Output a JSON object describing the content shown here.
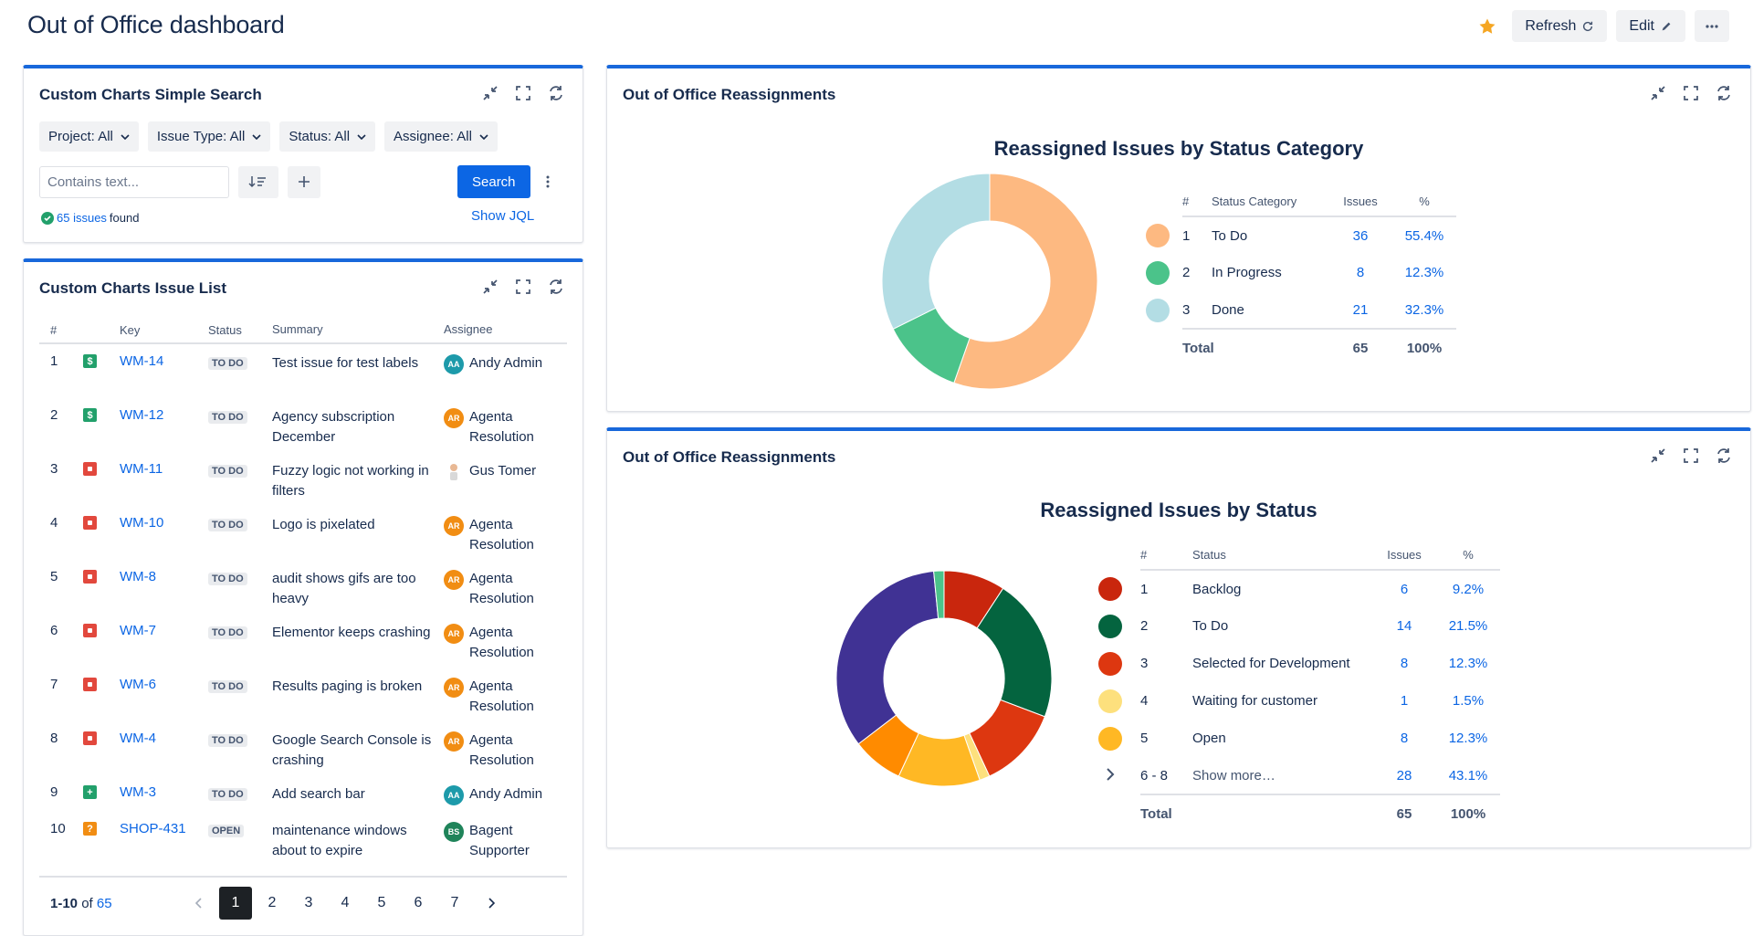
{
  "page": {
    "title": "Out of Office dashboard",
    "actions": {
      "refresh": "Refresh",
      "edit": "Edit"
    }
  },
  "search_panel": {
    "title": "Custom Charts Simple Search",
    "filters": [
      "Project: All",
      "Issue Type: All",
      "Status: All",
      "Assignee: All"
    ],
    "placeholder": "Contains text...",
    "search_label": "Search",
    "found_count": "65 issues",
    "found_suffix": "found",
    "show_jql": "Show JQL"
  },
  "issue_list": {
    "title": "Custom Charts Issue List",
    "headers": {
      "num": "#",
      "key": "Key",
      "status": "Status",
      "summary": "Summary",
      "assignee": "Assignee"
    },
    "rows": [
      {
        "num": "1",
        "type": "story",
        "key": "WM-14",
        "status": "TO DO",
        "summary": "Test issue for test labels",
        "assignee": "Andy Admin",
        "initials": "AA",
        "avatar_color": "#1d9aaa"
      },
      {
        "num": "2",
        "type": "story",
        "key": "WM-12",
        "status": "TO DO",
        "summary": "Agency subscription December",
        "assignee": "Agenta Resolution",
        "initials": "AR",
        "avatar_color": "#f18d13"
      },
      {
        "num": "3",
        "type": "bug",
        "key": "WM-11",
        "status": "TO DO",
        "summary": "Fuzzy logic not working in filters",
        "assignee": "Gus Tomer",
        "initials": "",
        "avatar_color": "#ffffff"
      },
      {
        "num": "4",
        "type": "bug",
        "key": "WM-10",
        "status": "TO DO",
        "summary": "Logo is pixelated",
        "assignee": "Agenta Resolution",
        "initials": "AR",
        "avatar_color": "#f18d13"
      },
      {
        "num": "5",
        "type": "bug",
        "key": "WM-8",
        "status": "TO DO",
        "summary": "audit shows gifs are too heavy",
        "assignee": "Agenta Resolution",
        "initials": "AR",
        "avatar_color": "#f18d13"
      },
      {
        "num": "6",
        "type": "bug",
        "key": "WM-7",
        "status": "TO DO",
        "summary": "Elementor keeps crashing",
        "assignee": "Agenta Resolution",
        "initials": "AR",
        "avatar_color": "#f18d13"
      },
      {
        "num": "7",
        "type": "bug",
        "key": "WM-6",
        "status": "TO DO",
        "summary": "Results paging is broken",
        "assignee": "Agenta Resolution",
        "initials": "AR",
        "avatar_color": "#f18d13"
      },
      {
        "num": "8",
        "type": "bug",
        "key": "WM-4",
        "status": "TO DO",
        "summary": "Google Search Console is crashing",
        "assignee": "Agenta Resolution",
        "initials": "AR",
        "avatar_color": "#f18d13"
      },
      {
        "num": "9",
        "type": "task",
        "key": "WM-3",
        "status": "TO DO",
        "summary": "Add search bar",
        "assignee": "Andy Admin",
        "initials": "AA",
        "avatar_color": "#1d9aaa"
      },
      {
        "num": "10",
        "type": "question",
        "key": "SHOP-431",
        "status": "OPEN",
        "summary": "maintenance windows about to expire",
        "assignee": "Bagent Supporter",
        "initials": "BS",
        "avatar_color": "#1f845a"
      }
    ],
    "pager": {
      "range": "1-10",
      "of": "of",
      "total": "65",
      "pages": [
        "1",
        "2",
        "3",
        "4",
        "5",
        "6",
        "7"
      ]
    }
  },
  "colors": {
    "story": "#22a06b",
    "bug": "#e2483d",
    "task": "#22a06b",
    "question": "#f18d13",
    "accent": "#1868db"
  },
  "chart_panel_1": {
    "title": "Out of Office Reassignments",
    "table_headers": {
      "num": "#",
      "name": "Status Category",
      "issues": "Issues",
      "pct": "%"
    },
    "total_label": "Total",
    "total_issues": "65",
    "total_pct": "100%"
  },
  "chart_panel_2": {
    "title": "Out of Office Reassignments",
    "table_headers": {
      "num": "#",
      "name": "Status",
      "issues": "Issues",
      "pct": "%"
    },
    "total_label": "Total",
    "total_issues": "65",
    "total_pct": "100%"
  },
  "chart_data": [
    {
      "type": "pie",
      "title": "Reassigned Issues by Status Category",
      "categories": [
        "To Do",
        "In Progress",
        "Done"
      ],
      "values": [
        36,
        8,
        21
      ],
      "percents": [
        "55.4%",
        "12.3%",
        "32.3%"
      ],
      "nums": [
        "1",
        "2",
        "3"
      ],
      "colors": [
        "#fdb981",
        "#4bc38a",
        "#b3dde4"
      ]
    },
    {
      "type": "pie",
      "title": "Reassigned Issues by Status",
      "categories": [
        "Backlog",
        "To Do",
        "Selected for Development",
        "Waiting for customer",
        "Open",
        "Show more…"
      ],
      "values": [
        6,
        14,
        8,
        1,
        8,
        28
      ],
      "percents": [
        "9.2%",
        "21.5%",
        "12.3%",
        "1.5%",
        "12.3%",
        "43.1%"
      ],
      "nums": [
        "1",
        "2",
        "3",
        "4",
        "5",
        "6 - 8"
      ],
      "colors": [
        "#c9260d",
        "#04643f",
        "#dd3710",
        "#fde07d",
        "#ffb824",
        "#42329a"
      ],
      "hidden_slices": {
        "values": [
          5,
          22,
          1
        ],
        "colors": [
          "#ff8b00",
          "#403294",
          "#4bc38a"
        ]
      }
    }
  ]
}
